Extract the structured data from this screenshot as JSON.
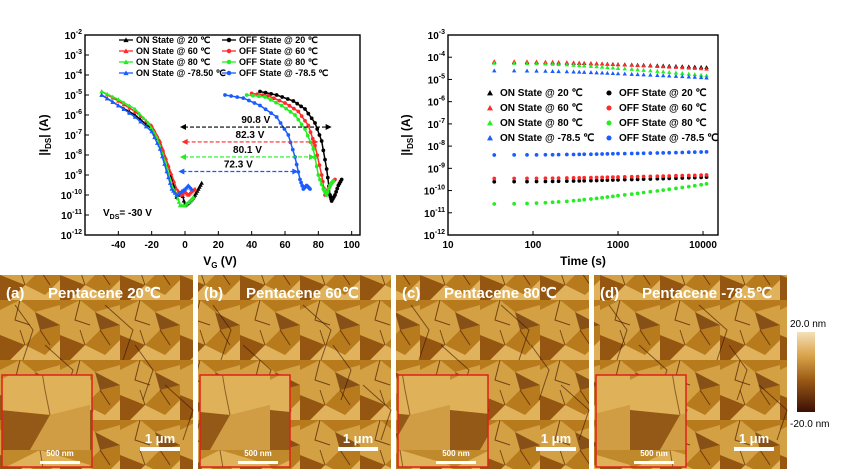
{
  "chart_data": [
    {
      "type": "line",
      "xlabel": "V_G (V)",
      "ylabel": "|I_DS| (A)",
      "xlim": [
        -60,
        105
      ],
      "ylim_log10": [
        -12,
        -2
      ],
      "log_y": true,
      "x_ticks": [
        "-40",
        "-20",
        "0",
        "20",
        "40",
        "60",
        "80",
        "100"
      ],
      "y_ticks": [
        "10-12",
        "10-11",
        "10-10",
        "10-9",
        "10-8",
        "10-7",
        "10-6",
        "10-5",
        "10-4",
        "10-3",
        "10-2"
      ],
      "legend_position": "top",
      "series": [
        {
          "name": "ON State @ 20 ℃",
          "color": "#000000",
          "marker": "triangle",
          "x": [
            -50,
            -40,
            -30,
            -20,
            -15,
            -10,
            -5,
            -2,
            0,
            2,
            4,
            6,
            8,
            10
          ],
          "y": [
            1e-05,
            3e-06,
            1e-06,
            2e-07,
            4e-08,
            3e-09,
            8e-11,
            1.5e-10,
            3e-11,
            4e-11,
            6e-11,
            1e-10,
            2e-10,
            4e-10
          ]
        },
        {
          "name": "OFF State @ 20 ℃",
          "color": "#000000",
          "marker": "circle",
          "x": [
            45,
            55,
            65,
            72,
            78,
            82,
            85,
            87,
            88,
            90,
            92,
            94
          ],
          "y": [
            1.5e-05,
            1e-05,
            5e-06,
            2e-06,
            4e-07,
            5e-08,
            2e-09,
            1e-10,
            5e-11,
            1e-10,
            3e-10,
            6e-10
          ]
        },
        {
          "name": "ON State @ 60 ℃",
          "color": "#ff2a2a",
          "marker": "triangle",
          "x": [
            -50,
            -40,
            -30,
            -20,
            -15,
            -10,
            -5,
            -2,
            0,
            2,
            4,
            6
          ],
          "y": [
            1.5e-05,
            5e-06,
            1.5e-06,
            3e-07,
            5e-08,
            3e-09,
            2e-10,
            1e-10,
            1.5e-10,
            1e-10,
            1.5e-10,
            2e-10
          ]
        },
        {
          "name": "OFF State @ 60 ℃",
          "color": "#ff2a2a",
          "marker": "circle",
          "x": [
            40,
            50,
            60,
            68,
            74,
            78,
            82,
            84,
            86,
            88,
            90
          ],
          "y": [
            1.2e-05,
            9e-06,
            4e-06,
            1.5e-06,
            3e-07,
            3e-08,
            1e-09,
            1e-10,
            2e-10,
            4e-10,
            6e-10
          ]
        },
        {
          "name": "ON State @ 80 ℃",
          "color": "#22ee22",
          "marker": "triangle",
          "x": [
            -50,
            -40,
            -30,
            -22,
            -17,
            -12,
            -8,
            -5,
            -3,
            0,
            3,
            5
          ],
          "y": [
            1.5e-05,
            6e-06,
            2e-06,
            4e-07,
            8e-08,
            5e-09,
            3e-10,
            1e-10,
            3e-11,
            3e-11,
            5e-11,
            8e-11
          ]
        },
        {
          "name": "OFF State @ 80 ℃",
          "color": "#22ee22",
          "marker": "circle",
          "x": [
            37,
            48,
            58,
            66,
            72,
            77,
            80,
            83,
            85,
            87,
            89
          ],
          "y": [
            1e-05,
            8e-06,
            3e-06,
            1e-06,
            2e-07,
            2e-08,
            1e-09,
            2e-10,
            1e-10,
            3e-10,
            5e-10
          ]
        },
        {
          "name": "ON State @ -78.50 ℃",
          "color": "#1a5cff",
          "marker": "triangle",
          "x": [
            -50,
            -40,
            -30,
            -20,
            -15,
            -11,
            -8,
            -5,
            -2,
            0,
            2,
            4
          ],
          "y": [
            1e-05,
            3e-06,
            8e-07,
            1.5e-07,
            2e-08,
            1.5e-09,
            2e-10,
            1e-10,
            1.5e-10,
            2e-10,
            3e-10,
            2e-10
          ]
        },
        {
          "name": "OFF State @ -78.5 ℃",
          "color": "#1a5cff",
          "marker": "circle",
          "x": [
            24,
            35,
            45,
            55,
            62,
            66,
            69,
            71,
            73,
            75
          ],
          "y": [
            1e-05,
            7e-06,
            3e-06,
            8e-07,
            1e-07,
            8e-09,
            6e-10,
            2e-10,
            3e-10,
            2e-10
          ]
        }
      ],
      "annotations": [
        {
          "text": "90.8 V",
          "x_from": -3,
          "x_to": 88,
          "y": 2.5e-07,
          "color": "#000000"
        },
        {
          "text": "82.3 V",
          "x_from": -2,
          "x_to": 80,
          "y": 4.5e-08,
          "color": "#ff2a2a"
        },
        {
          "text": "80.1 V",
          "x_from": -3,
          "x_to": 78,
          "y": 8e-09,
          "color": "#22ee22"
        },
        {
          "text": "72.3 V",
          "x_from": -4,
          "x_to": 68,
          "y": 1.5e-09,
          "color": "#1a5cff"
        }
      ],
      "inset_label": "V_DS = -30 V"
    },
    {
      "type": "scatter",
      "xlabel": "Time (s)",
      "ylabel": "|I_DS| (A)",
      "log_x": true,
      "log_y": true,
      "xlim": [
        10,
        15000
      ],
      "ylim_log10": [
        -12,
        -3
      ],
      "x_ticks": [
        "10",
        "100",
        "1000",
        "10000"
      ],
      "y_ticks": [
        "10-12",
        "10-11",
        "10-10",
        "10-9",
        "10-8",
        "10-7",
        "10-6",
        "10-5",
        "10-4",
        "10-3"
      ],
      "legend_position": "center",
      "series": [
        {
          "name": "ON State @ 20 ℃",
          "color": "#000000",
          "marker": "triangle",
          "start_value": 6e-05,
          "end_value": 3.5e-05
        },
        {
          "name": "OFF State @ 20 ℃",
          "color": "#000000",
          "marker": "circle",
          "start_value": 2.5e-10,
          "end_value": 4e-10
        },
        {
          "name": "ON State @ 60 ℃",
          "color": "#ff2a2a",
          "marker": "triangle",
          "start_value": 6.5e-05,
          "end_value": 3e-05
        },
        {
          "name": "OFF State @ 60 ℃",
          "color": "#ff2a2a",
          "marker": "circle",
          "start_value": 3.5e-10,
          "end_value": 5e-10
        },
        {
          "name": "ON State @ 80 ℃",
          "color": "#22ee22",
          "marker": "triangle",
          "start_value": 5.5e-05,
          "end_value": 1.5e-05
        },
        {
          "name": "OFF State @ 80 ℃",
          "color": "#22ee22",
          "marker": "circle",
          "start_value": 2.5e-11,
          "end_value": 2e-10
        },
        {
          "name": "ON State @ -78.5 ℃",
          "color": "#1a5cff",
          "marker": "triangle",
          "start_value": 2.5e-05,
          "end_value": 1.2e-05
        },
        {
          "name": "OFF State @ -78.5 ℃",
          "color": "#1a5cff",
          "marker": "circle",
          "start_value": 4e-09,
          "end_value": 5.5e-09
        }
      ]
    }
  ],
  "afm_panels": [
    {
      "label": "(a)",
      "title": "Pentacene 20℃",
      "scale": "1 μm",
      "inset_scale": "500 nm"
    },
    {
      "label": "(b)",
      "title": "Pentacene 60℃",
      "scale": "1 μm",
      "inset_scale": "500 nm"
    },
    {
      "label": "(c)",
      "title": "Pentacene 80℃",
      "scale": "1 μm",
      "inset_scale": "500 nm"
    },
    {
      "label": "(d)",
      "title": "Pentacene -78.5℃",
      "scale": "1 μm",
      "inset_scale": "500 nm"
    }
  ],
  "colorbar": {
    "max": "20.0 nm",
    "min": "-20.0 nm"
  }
}
